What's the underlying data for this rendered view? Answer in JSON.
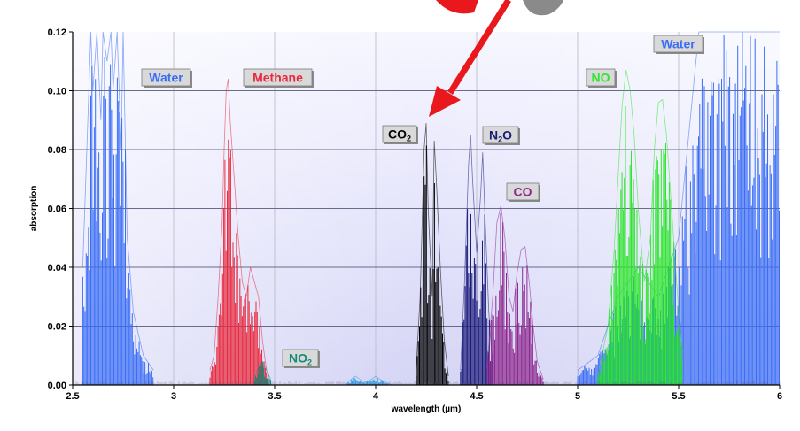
{
  "chart_data": {
    "type": "line",
    "title": "",
    "xlabel": "wavelength (µm)",
    "ylabel": "absorption",
    "xlim": [
      2.5,
      6
    ],
    "ylim": [
      0,
      0.12
    ],
    "x_ticks": [
      "2.5",
      "3",
      "3.5",
      "4",
      "4.5",
      "5",
      "5.5",
      "6"
    ],
    "y_ticks": [
      "0.00",
      "0.02",
      "0.04",
      "0.06",
      "0.08",
      "0.10",
      "0.12"
    ],
    "grid": true,
    "series": [
      {
        "name": "Water",
        "color": "#3b6ef5",
        "x": [
          2.55,
          2.57,
          2.59,
          2.6,
          2.62,
          2.64,
          2.65,
          2.67,
          2.69,
          2.7,
          2.72,
          2.74,
          2.75,
          2.77,
          2.8,
          2.85,
          2.9
        ],
        "y": [
          0.04,
          0.08,
          0.12,
          0.1,
          0.12,
          0.09,
          0.12,
          0.11,
          0.12,
          0.1,
          0.12,
          0.08,
          0.12,
          0.05,
          0.025,
          0.01,
          0.005
        ]
      },
      {
        "name": "Water",
        "color": "#3b6ef5",
        "x": [
          5.0,
          5.1,
          5.2,
          5.3,
          5.4,
          5.5,
          5.6,
          5.65,
          5.7,
          5.75,
          5.8,
          5.85,
          5.9,
          5.95,
          6.0
        ],
        "y": [
          0.005,
          0.01,
          0.03,
          0.04,
          0.03,
          0.05,
          0.12,
          0.12,
          0.12,
          0.12,
          0.12,
          0.12,
          0.12,
          0.12,
          0.12
        ]
      },
      {
        "name": "Methane",
        "color": "#e8283c",
        "x": [
          3.18,
          3.2,
          3.22,
          3.24,
          3.25,
          3.26,
          3.27,
          3.28,
          3.3,
          3.32,
          3.34,
          3.36,
          3.38,
          3.4,
          3.42,
          3.44,
          3.46
        ],
        "y": [
          0.005,
          0.01,
          0.03,
          0.055,
          0.08,
          0.1,
          0.104,
          0.09,
          0.07,
          0.05,
          0.035,
          0.03,
          0.04,
          0.035,
          0.03,
          0.015,
          0.005
        ]
      },
      {
        "name": "NO2",
        "color": "#16897b",
        "x": [
          3.4,
          3.42,
          3.44,
          3.46,
          3.48
        ],
        "y": [
          0.002,
          0.006,
          0.008,
          0.005,
          0.002
        ]
      },
      {
        "name": "CO2",
        "color": "#000000",
        "x": [
          4.2,
          4.22,
          4.24,
          4.25,
          4.26,
          4.28,
          4.29,
          4.3,
          4.32,
          4.34,
          4.36
        ],
        "y": [
          0.005,
          0.03,
          0.08,
          0.089,
          0.06,
          0.03,
          0.083,
          0.07,
          0.04,
          0.015,
          0.003
        ]
      },
      {
        "name": "N2O",
        "color": "#1a1a7a",
        "x": [
          4.42,
          4.44,
          4.46,
          4.47,
          4.48,
          4.5,
          4.52,
          4.53,
          4.54,
          4.56,
          4.58
        ],
        "y": [
          0.005,
          0.035,
          0.075,
          0.085,
          0.07,
          0.045,
          0.065,
          0.079,
          0.06,
          0.025,
          0.005
        ]
      },
      {
        "name": "CO",
        "color": "#8e2a8f",
        "x": [
          4.55,
          4.58,
          4.6,
          4.62,
          4.64,
          4.66,
          4.68,
          4.7,
          4.72,
          4.74,
          4.76,
          4.78,
          4.8,
          4.83
        ],
        "y": [
          0.005,
          0.03,
          0.055,
          0.061,
          0.05,
          0.03,
          0.025,
          0.038,
          0.046,
          0.047,
          0.035,
          0.02,
          0.008,
          0.002
        ]
      },
      {
        "name": "NO",
        "color": "#2de62d",
        "x": [
          5.1,
          5.15,
          5.18,
          5.2,
          5.22,
          5.24,
          5.26,
          5.28,
          5.3,
          5.33,
          5.36,
          5.38,
          5.4,
          5.42,
          5.44,
          5.46,
          5.48,
          5.5,
          5.52
        ],
        "y": [
          0.003,
          0.02,
          0.045,
          0.07,
          0.095,
          0.107,
          0.1,
          0.085,
          0.06,
          0.035,
          0.05,
          0.08,
          0.096,
          0.097,
          0.085,
          0.065,
          0.045,
          0.025,
          0.01
        ]
      },
      {
        "name": "",
        "color": "#2fa0e6",
        "x": [
          3.85,
          3.88,
          3.9,
          3.92,
          3.95,
          3.98,
          4.0,
          4.02,
          4.05,
          4.08
        ],
        "y": [
          0.0,
          0.002,
          0.003,
          0.002,
          0.001,
          0.002,
          0.003,
          0.002,
          0.001,
          0.0
        ]
      }
    ],
    "annotations": [
      {
        "text": "Water",
        "color": "#3b6ef5"
      },
      {
        "text": "Methane",
        "color": "#e8283c"
      },
      {
        "text": "CO2",
        "color": "#000000"
      },
      {
        "text": "N2O",
        "color": "#1a1a7a"
      },
      {
        "text": "CO",
        "color": "#8e2a8f"
      },
      {
        "text": "NO2",
        "color": "#16897b"
      },
      {
        "text": "NO",
        "color": "#2de62d"
      },
      {
        "text": "Water",
        "color": "#3b6ef5"
      }
    ],
    "arrow_color": "#e8181c"
  }
}
